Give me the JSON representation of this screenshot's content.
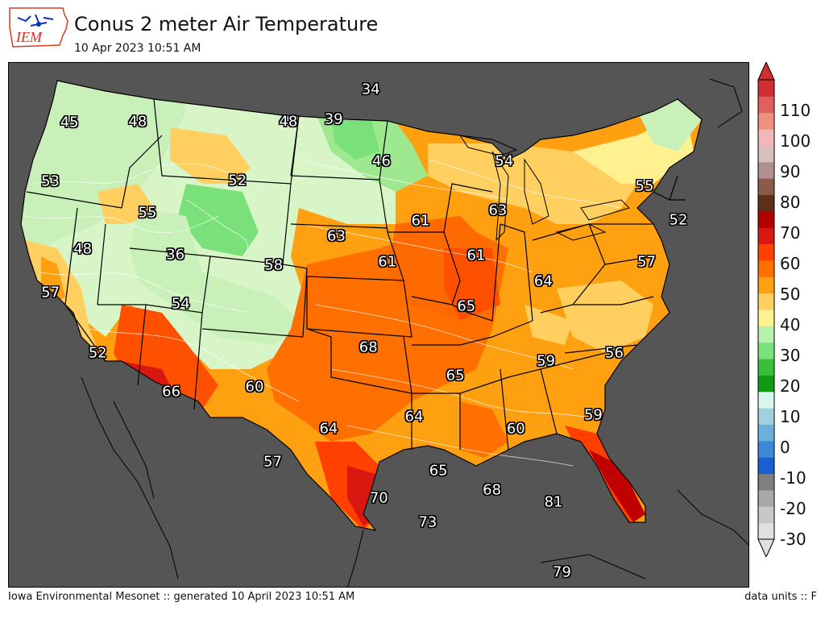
{
  "header": {
    "title": "Conus 2 meter Air Temperature",
    "subtitle": "10 Apr 2023 10:51 AM",
    "logo_text": "IEM"
  },
  "map": {
    "background_color": "#555555",
    "labels": [
      {
        "text": "45",
        "lon": -122.3,
        "lat": 47.5
      },
      {
        "text": "48",
        "lon": -116.6,
        "lat": 47.3
      },
      {
        "text": "34",
        "lon": -97.1,
        "lat": 48.6
      },
      {
        "text": "48",
        "lon": -104.0,
        "lat": 47.0
      },
      {
        "text": "39",
        "lon": -100.2,
        "lat": 47.1
      },
      {
        "text": "53",
        "lon": -124.0,
        "lat": 44.6
      },
      {
        "text": "52",
        "lon": -108.3,
        "lat": 44.1
      },
      {
        "text": "46",
        "lon": -96.2,
        "lat": 45.0
      },
      {
        "text": "54",
        "lon": -85.9,
        "lat": 45.1
      },
      {
        "text": "55",
        "lon": -74.1,
        "lat": 44.2
      },
      {
        "text": "52",
        "lon": -71.2,
        "lat": 42.6
      },
      {
        "text": "55",
        "lon": -115.9,
        "lat": 42.7
      },
      {
        "text": "61",
        "lon": -92.9,
        "lat": 42.0
      },
      {
        "text": "63",
        "lon": -86.4,
        "lat": 42.6
      },
      {
        "text": "48",
        "lon": -121.4,
        "lat": 41.1
      },
      {
        "text": "63",
        "lon": -100.0,
        "lat": 41.2
      },
      {
        "text": "36",
        "lon": -113.6,
        "lat": 40.5
      },
      {
        "text": "58",
        "lon": -105.3,
        "lat": 39.8
      },
      {
        "text": "61",
        "lon": -95.7,
        "lat": 39.9
      },
      {
        "text": "61",
        "lon": -88.2,
        "lat": 40.3
      },
      {
        "text": "57",
        "lon": -73.8,
        "lat": 40.4
      },
      {
        "text": "57",
        "lon": -124.2,
        "lat": 39.0
      },
      {
        "text": "64",
        "lon": -82.5,
        "lat": 39.1
      },
      {
        "text": "54",
        "lon": -113.2,
        "lat": 38.0
      },
      {
        "text": "65",
        "lon": -89.0,
        "lat": 37.7
      },
      {
        "text": "52",
        "lon": -120.3,
        "lat": 35.8
      },
      {
        "text": "68",
        "lon": -97.3,
        "lat": 35.6
      },
      {
        "text": "56",
        "lon": -76.4,
        "lat": 35.7
      },
      {
        "text": "59",
        "lon": -82.2,
        "lat": 35.1
      },
      {
        "text": "66",
        "lon": -114.1,
        "lat": 33.6
      },
      {
        "text": "60",
        "lon": -107.0,
        "lat": 33.7
      },
      {
        "text": "65",
        "lon": -89.9,
        "lat": 34.2
      },
      {
        "text": "59",
        "lon": -78.1,
        "lat": 32.5
      },
      {
        "text": "64",
        "lon": -100.7,
        "lat": 31.5
      },
      {
        "text": "64",
        "lon": -93.4,
        "lat": 32.1
      },
      {
        "text": "60",
        "lon": -84.7,
        "lat": 31.6
      },
      {
        "text": "57",
        "lon": -105.5,
        "lat": 29.9
      },
      {
        "text": "65",
        "lon": -91.3,
        "lat": 29.4
      },
      {
        "text": "68",
        "lon": -86.7,
        "lat": 28.5
      },
      {
        "text": "81",
        "lon": -81.4,
        "lat": 28.0
      },
      {
        "text": "70",
        "lon": -96.4,
        "lat": 28.0
      },
      {
        "text": "73",
        "lon": -92.2,
        "lat": 26.8
      },
      {
        "text": "79",
        "lon": -80.6,
        "lat": 24.5
      }
    ]
  },
  "colorbar": {
    "colors": [
      "#e0e0e0",
      "#c8c8c8",
      "#a8a8a8",
      "#7f7f7f",
      "#1a5fd0",
      "#3a8ad8",
      "#6bb0da",
      "#9fd0e0",
      "#d8f5ee",
      "#109a10",
      "#38c038",
      "#7ae07a",
      "#b8f0b0",
      "#fff090",
      "#ffd060",
      "#ffa010",
      "#ff7000",
      "#ff4000",
      "#d81810",
      "#b00000",
      "#5a3018",
      "#8a5a4a",
      "#b09090",
      "#d8c0c0",
      "#f0b8b8",
      "#f09080",
      "#e06060",
      "#d03030"
    ],
    "ticks": [
      {
        "label": "110",
        "value": 110
      },
      {
        "label": "100",
        "value": 100
      },
      {
        "label": "90",
        "value": 90
      },
      {
        "label": "80",
        "value": 80
      },
      {
        "label": "70",
        "value": 70
      },
      {
        "label": "60",
        "value": 60
      },
      {
        "label": "50",
        "value": 50
      },
      {
        "label": "40",
        "value": 40
      },
      {
        "label": "30",
        "value": 30
      },
      {
        "label": "20",
        "value": 20
      },
      {
        "label": "10",
        "value": 10
      },
      {
        "label": "0",
        "value": 0
      },
      {
        "label": "-10",
        "value": -10
      },
      {
        "label": "-20",
        "value": -20
      },
      {
        "label": "-30",
        "value": -30
      }
    ],
    "range": [
      -30,
      120
    ]
  },
  "footer": {
    "left": "Iowa Environmental Mesonet :: generated 10 April 2023 10:51 AM",
    "right": "data units :: F"
  }
}
